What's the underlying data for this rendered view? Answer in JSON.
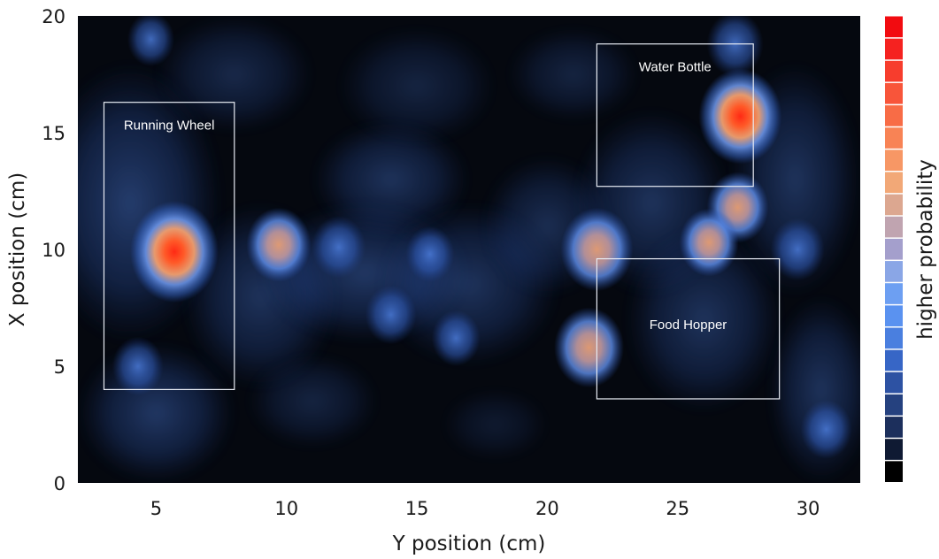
{
  "chart_data": {
    "type": "heatmap",
    "xlabel": "Y position (cm)",
    "ylabel": "X position (cm)",
    "xlim": [
      2,
      32
    ],
    "ylim": [
      0,
      20
    ],
    "x_ticks": [
      5,
      10,
      15,
      20,
      25,
      30
    ],
    "y_ticks": [
      0,
      5,
      10,
      15,
      20
    ],
    "grid": false,
    "colorbar": {
      "label": "higher probability",
      "colors": [
        "#000000",
        "#0f1a33",
        "#1c2f5c",
        "#25417f",
        "#2d52a3",
        "#3766c6",
        "#4a7fdf",
        "#5a92f0",
        "#6d9ff2",
        "#8aa6e6",
        "#a49fcc",
        "#c0a4b0",
        "#dca790",
        "#f2a877",
        "#f79765",
        "#f88355",
        "#f86c46",
        "#f8553a",
        "#f73d2d",
        "#f52220",
        "#f20b10"
      ]
    },
    "hotspots": [
      {
        "x": 5.7,
        "y": 9.9,
        "intensity": 1.0
      },
      {
        "x": 27.4,
        "y": 15.7,
        "intensity": 0.9
      },
      {
        "x": 21.9,
        "y": 10.0,
        "intensity": 0.7
      },
      {
        "x": 21.6,
        "y": 5.8,
        "intensity": 0.65
      },
      {
        "x": 9.7,
        "y": 10.2,
        "intensity": 0.55
      },
      {
        "x": 27.3,
        "y": 11.8,
        "intensity": 0.5
      },
      {
        "x": 26.2,
        "y": 10.3,
        "intensity": 0.45
      },
      {
        "x": 27.2,
        "y": 18.8,
        "intensity": 0.4
      },
      {
        "x": 29.6,
        "y": 10.0,
        "intensity": 0.35
      },
      {
        "x": 12.0,
        "y": 10.1,
        "intensity": 0.35
      },
      {
        "x": 14.0,
        "y": 7.2,
        "intensity": 0.3
      },
      {
        "x": 4.3,
        "y": 5.0,
        "intensity": 0.3
      },
      {
        "x": 16.5,
        "y": 6.2,
        "intensity": 0.25
      },
      {
        "x": 15.5,
        "y": 9.8,
        "intensity": 0.25
      },
      {
        "x": 4.8,
        "y": 19.0,
        "intensity": 0.22
      },
      {
        "x": 30.7,
        "y": 2.3,
        "intensity": 0.3
      }
    ],
    "annotations": [
      {
        "label": "Running Wheel",
        "x_range": [
          3.0,
          8.0
        ],
        "y_range": [
          4.0,
          16.3
        ]
      },
      {
        "label": "Water Bottle",
        "x_range": [
          21.9,
          27.9
        ],
        "y_range": [
          12.7,
          18.8
        ]
      },
      {
        "label": "Food Hopper",
        "x_range": [
          21.9,
          28.9
        ],
        "y_range": [
          3.6,
          9.6
        ]
      }
    ]
  }
}
